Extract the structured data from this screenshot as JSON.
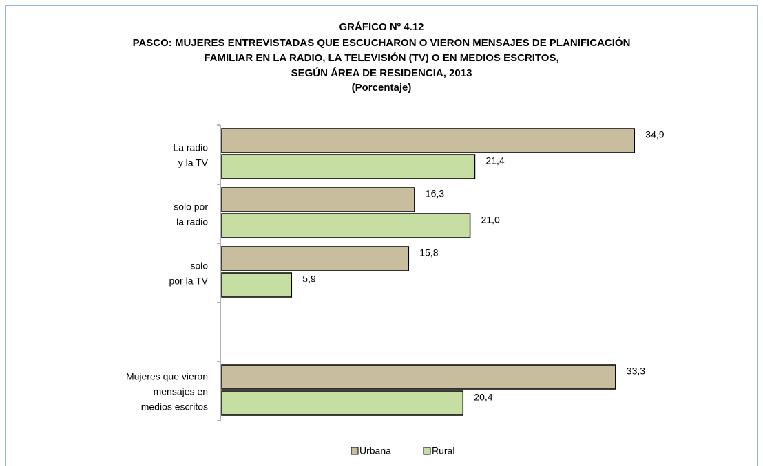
{
  "chart_data": {
    "type": "bar",
    "orientation": "horizontal",
    "title": [
      "GRÁFICO Nº 4.12",
      "PASCO: MUJERES ENTREVISTADAS QUE ESCUCHARON O VIERON MENSAJES DE PLANIFICACIÓN",
      "FAMILIAR EN LA RADIO, LA TELEVISIÓN (TV) O EN MEDIOS ESCRITOS,",
      "SEGÚN ÁREA DE RESIDENCIA, 2013"
    ],
    "subtitle": "(Porcentaje)",
    "categories": [
      [
        "La radio",
        "y la TV"
      ],
      [
        "solo por",
        "la radio"
      ],
      [
        "solo",
        "por la TV"
      ],
      null,
      [
        "Mujeres que vieron",
        "mensajes en",
        "medios escritos"
      ]
    ],
    "series": [
      {
        "name": "Urbana",
        "color": "#c8bd9c",
        "values": [
          34.9,
          16.3,
          15.8,
          null,
          33.3
        ],
        "value_labels": [
          "34,9",
          "16,3",
          "15,8",
          null,
          "33,3"
        ]
      },
      {
        "name": "Rural",
        "color": "#c6dea2",
        "values": [
          21.4,
          21.0,
          5.9,
          null,
          20.4
        ],
        "value_labels": [
          "21,4",
          "21,0",
          "5,9",
          null,
          "20,4"
        ]
      }
    ],
    "xlim": [
      0,
      35
    ],
    "legend": "bottom"
  }
}
